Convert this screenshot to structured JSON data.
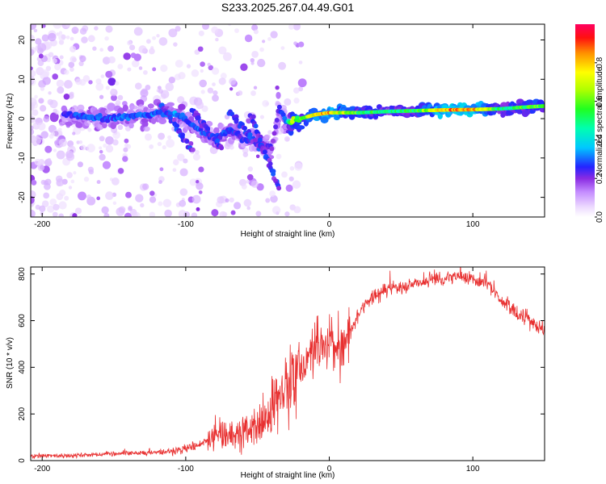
{
  "title": "S233.2025.267.04.49.G01",
  "chart_data": [
    {
      "type": "heatmap",
      "xlabel": "Height of straight line (km)",
      "ylabel": "Frequency (Hz)",
      "xlim": [
        -208,
        150
      ],
      "ylim": [
        -25,
        24
      ],
      "xticks": [
        -200,
        -100,
        0,
        100
      ],
      "xtick_labels": [
        "-200",
        "-100",
        "0",
        "100"
      ],
      "yticks": [
        -20,
        -10,
        0,
        10,
        20
      ],
      "ytick_labels": [
        "-20",
        "-10",
        "0",
        "10",
        "20"
      ],
      "colorbar": {
        "label": "Normalized spectral amplitude",
        "range": [
          0,
          1
        ],
        "ticks": [
          0.0,
          0.2,
          0.4,
          0.6,
          0.8
        ],
        "tick_labels": [
          "0.0",
          "0.2",
          "0.4",
          "0.6",
          "0.8"
        ]
      },
      "main_ridge": {
        "x": [
          -185,
          -170,
          -155,
          -140,
          -125,
          -110,
          -100,
          -90,
          -80,
          -70,
          -60,
          -50,
          -40,
          -35,
          -30,
          -25,
          -20,
          -10,
          0,
          20,
          40,
          60,
          80,
          100,
          120,
          140,
          150
        ],
        "freq": [
          1,
          0.5,
          0,
          0.5,
          1,
          1.5,
          0,
          -3,
          -5,
          -3,
          -5,
          -6,
          -7,
          3,
          -1,
          -0.5,
          0,
          1,
          1.5,
          1.5,
          1.8,
          2,
          2.2,
          2.3,
          2.5,
          3,
          3.2
        ],
        "amplitude": [
          0.25,
          0.3,
          0.3,
          0.3,
          0.3,
          0.35,
          0.3,
          0.3,
          0.28,
          0.28,
          0.25,
          0.25,
          0.22,
          0.25,
          0.3,
          0.7,
          0.6,
          0.75,
          0.85,
          0.6,
          0.5,
          0.55,
          0.9,
          0.9,
          0.5,
          0.6,
          0.6
        ]
      }
    },
    {
      "type": "line",
      "xlabel": "Height of straight line (km)",
      "ylabel": "SNR (10 * v/v)",
      "xlim": [
        -208,
        150
      ],
      "ylim": [
        0,
        830
      ],
      "xticks": [
        -200,
        -100,
        0,
        100
      ],
      "xtick_labels": [
        "-200",
        "-100",
        "0",
        "100"
      ],
      "yticks": [
        0,
        200,
        400,
        600,
        800
      ],
      "ytick_labels": [
        "0",
        "200",
        "400",
        "600",
        "800"
      ],
      "color": "#e83030",
      "anchors": {
        "x": [
          -208,
          -180,
          -150,
          -120,
          -110,
          -100,
          -90,
          -80,
          -70,
          -60,
          -50,
          -45,
          -40,
          -35,
          -30,
          -25,
          -20,
          -15,
          -10,
          -5,
          0,
          10,
          20,
          30,
          40,
          50,
          60,
          70,
          80,
          90,
          100,
          110,
          120,
          130,
          140,
          150
        ],
        "snr": [
          20,
          22,
          30,
          35,
          40,
          50,
          70,
          100,
          115,
          125,
          140,
          170,
          210,
          260,
          350,
          390,
          400,
          440,
          500,
          500,
          500,
          480,
          630,
          700,
          730,
          750,
          760,
          770,
          775,
          790,
          780,
          760,
          690,
          630,
          600,
          560
        ]
      }
    }
  ]
}
